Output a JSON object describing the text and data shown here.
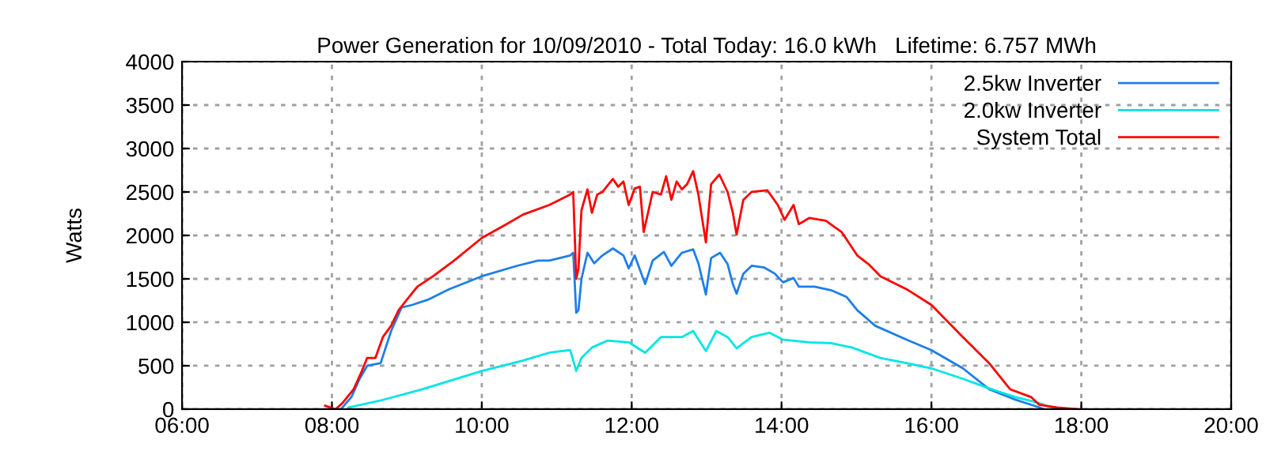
{
  "chart_data": {
    "type": "line",
    "title": "Power Generation for 10/09/2010 - Total Today: 16.0 kWh   Lifetime: 6.757 MWh",
    "ylabel": "Watts",
    "xlim": [
      6,
      20
    ],
    "xticks": [
      {
        "value": 6,
        "label": "06:00"
      },
      {
        "value": 8,
        "label": "08:00"
      },
      {
        "value": 10,
        "label": "10:00"
      },
      {
        "value": 12,
        "label": "12:00"
      },
      {
        "value": 14,
        "label": "14:00"
      },
      {
        "value": 16,
        "label": "16:00"
      },
      {
        "value": 18,
        "label": "18:00"
      },
      {
        "value": 20,
        "label": "20:00"
      }
    ],
    "ylim": [
      0,
      4000
    ],
    "yticks": [
      0,
      500,
      1000,
      1500,
      2000,
      2500,
      3000,
      3500,
      4000
    ],
    "grid": true,
    "legend": "top right",
    "line_style": "solid",
    "series": [
      {
        "name": "2.5kw Inverter",
        "color": "#1c7fe8",
        "x": [
          8.12,
          8.26,
          8.37,
          8.47,
          8.65,
          8.79,
          8.93,
          9.07,
          9.28,
          9.56,
          10.0,
          10.47,
          10.75,
          10.9,
          11.18,
          11.22,
          11.26,
          11.29,
          11.33,
          11.41,
          11.5,
          11.61,
          11.75,
          11.89,
          11.96,
          12.04,
          12.18,
          12.28,
          12.43,
          12.53,
          12.67,
          12.82,
          12.89,
          12.99,
          13.06,
          13.18,
          13.28,
          13.35,
          13.4,
          13.49,
          13.6,
          13.77,
          13.91,
          14.02,
          14.16,
          14.23,
          14.44,
          14.66,
          14.87,
          15.01,
          15.25,
          15.67,
          16.0,
          16.42,
          16.77,
          17.12,
          17.44,
          17.5
        ],
        "values": [
          0,
          140,
          350,
          500,
          530,
          900,
          1170,
          1200,
          1260,
          1380,
          1530,
          1650,
          1710,
          1710,
          1770,
          1800,
          1110,
          1140,
          1500,
          1800,
          1680,
          1770,
          1850,
          1770,
          1620,
          1770,
          1440,
          1710,
          1810,
          1650,
          1800,
          1840,
          1680,
          1320,
          1740,
          1800,
          1670,
          1440,
          1330,
          1560,
          1650,
          1630,
          1560,
          1460,
          1510,
          1410,
          1410,
          1370,
          1290,
          1140,
          960,
          800,
          680,
          470,
          230,
          110,
          20,
          0
        ]
      },
      {
        "name": "2.0kw Inverter",
        "color": "#00e5e5",
        "x": [
          8.22,
          8.65,
          9.21,
          10.0,
          10.55,
          10.9,
          11.18,
          11.26,
          11.33,
          11.47,
          11.68,
          11.96,
          12.18,
          12.39,
          12.67,
          12.82,
          12.99,
          13.13,
          13.28,
          13.4,
          13.6,
          13.84,
          14.02,
          14.37,
          14.66,
          14.94,
          15.16,
          15.32,
          15.67,
          16.0,
          16.42,
          16.77,
          17.12,
          17.4,
          17.6,
          17.65
        ],
        "values": [
          20,
          100,
          230,
          440,
          560,
          650,
          680,
          440,
          590,
          710,
          790,
          770,
          650,
          830,
          830,
          900,
          670,
          900,
          830,
          700,
          830,
          880,
          800,
          770,
          760,
          710,
          640,
          590,
          530,
          470,
          350,
          240,
          140,
          80,
          20,
          0
        ]
      },
      {
        "name": "System Total",
        "color": "#ff0000",
        "x": [
          7.91,
          8.05,
          8.15,
          8.29,
          8.4,
          8.47,
          8.58,
          8.68,
          8.79,
          8.89,
          9.0,
          9.14,
          9.35,
          9.63,
          10.0,
          10.33,
          10.55,
          10.9,
          11.18,
          11.22,
          11.26,
          11.29,
          11.33,
          11.41,
          11.47,
          11.54,
          11.61,
          11.75,
          11.82,
          11.89,
          11.96,
          12.04,
          12.11,
          12.16,
          12.21,
          12.28,
          12.39,
          12.46,
          12.53,
          12.6,
          12.67,
          12.74,
          12.82,
          12.89,
          12.99,
          13.06,
          13.17,
          13.28,
          13.35,
          13.4,
          13.49,
          13.6,
          13.81,
          13.95,
          14.04,
          14.16,
          14.23,
          14.37,
          14.59,
          14.8,
          15.01,
          15.16,
          15.32,
          15.67,
          16.0,
          16.42,
          16.77,
          17.05,
          17.33,
          17.44,
          17.68,
          17.96
        ],
        "values": [
          40,
          0,
          80,
          230,
          440,
          590,
          590,
          830,
          960,
          1140,
          1260,
          1410,
          1530,
          1710,
          1970,
          2130,
          2240,
          2350,
          2470,
          2500,
          1500,
          1620,
          2290,
          2530,
          2260,
          2470,
          2500,
          2650,
          2560,
          2620,
          2350,
          2540,
          2560,
          2040,
          2230,
          2500,
          2470,
          2680,
          2410,
          2620,
          2530,
          2590,
          2740,
          2470,
          1920,
          2590,
          2700,
          2500,
          2260,
          2010,
          2410,
          2500,
          2520,
          2350,
          2180,
          2350,
          2130,
          2200,
          2170,
          2040,
          1770,
          1670,
          1530,
          1380,
          1200,
          830,
          530,
          230,
          140,
          50,
          20,
          0
        ]
      }
    ]
  }
}
